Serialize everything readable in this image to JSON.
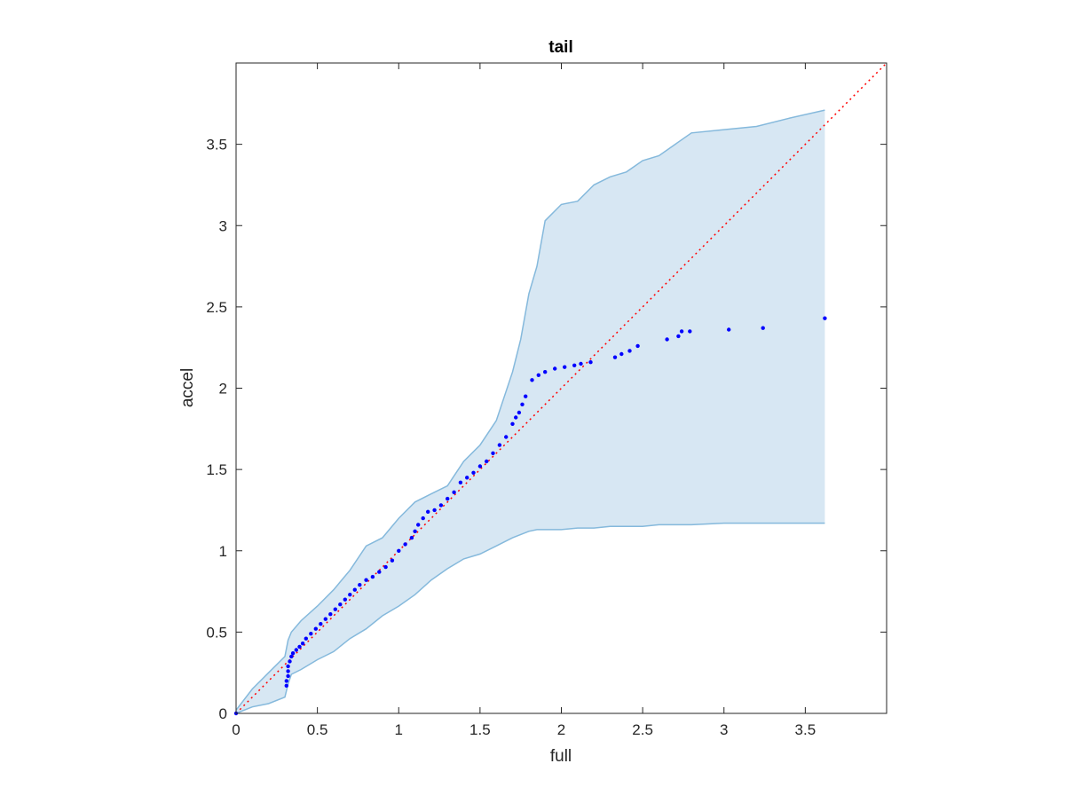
{
  "chart_data": {
    "type": "scatter",
    "title": "tail",
    "xlabel": "full",
    "ylabel": "accel",
    "xlim": [
      0,
      4
    ],
    "ylim": [
      0,
      4
    ],
    "xticks": [
      0,
      0.5,
      1,
      1.5,
      2,
      2.5,
      3,
      3.5
    ],
    "yticks": [
      0,
      0.5,
      1,
      1.5,
      2,
      2.5,
      3,
      3.5
    ],
    "xtick_labels": [
      "0",
      "0.5",
      "1",
      "1.5",
      "2",
      "2.5",
      "3",
      "3.5"
    ],
    "ytick_labels": [
      "0",
      "0.5",
      "1",
      "1.5",
      "2",
      "2.5",
      "3",
      "3.5"
    ],
    "grid": false,
    "reference_line": {
      "style": "dotted",
      "color": "#ff0000",
      "x": [
        0,
        4
      ],
      "y": [
        0,
        4
      ]
    },
    "band": {
      "fill_color": "#d7e7f3",
      "edge_color": "#85b9dc",
      "x": [
        0,
        0.1,
        0.2,
        0.3,
        0.32,
        0.34,
        0.4,
        0.5,
        0.6,
        0.7,
        0.8,
        0.9,
        1.0,
        1.1,
        1.2,
        1.3,
        1.4,
        1.5,
        1.6,
        1.7,
        1.75,
        1.8,
        1.85,
        1.9,
        2.0,
        2.1,
        2.2,
        2.3,
        2.4,
        2.5,
        2.6,
        2.7,
        2.8,
        3.0,
        3.2,
        3.4,
        3.62
      ],
      "upper": [
        0.02,
        0.15,
        0.25,
        0.35,
        0.45,
        0.5,
        0.57,
        0.66,
        0.76,
        0.88,
        1.03,
        1.08,
        1.2,
        1.3,
        1.35,
        1.4,
        1.55,
        1.65,
        1.8,
        2.1,
        2.3,
        2.58,
        2.75,
        3.03,
        3.13,
        3.15,
        3.25,
        3.3,
        3.33,
        3.4,
        3.43,
        3.5,
        3.57,
        3.59,
        3.61,
        3.66,
        3.71
      ],
      "lower": [
        0.0,
        0.04,
        0.06,
        0.1,
        0.18,
        0.24,
        0.27,
        0.33,
        0.38,
        0.46,
        0.52,
        0.6,
        0.66,
        0.73,
        0.82,
        0.89,
        0.95,
        0.98,
        1.03,
        1.08,
        1.1,
        1.12,
        1.13,
        1.13,
        1.13,
        1.14,
        1.14,
        1.15,
        1.15,
        1.15,
        1.16,
        1.16,
        1.16,
        1.17,
        1.17,
        1.17,
        1.17
      ]
    },
    "series": [
      {
        "color": "#0000ff",
        "x": [
          0.0,
          0.31,
          0.31,
          0.32,
          0.32,
          0.32,
          0.33,
          0.34,
          0.35,
          0.37,
          0.39,
          0.41,
          0.43,
          0.46,
          0.49,
          0.52,
          0.55,
          0.58,
          0.61,
          0.64,
          0.67,
          0.7,
          0.73,
          0.76,
          0.8,
          0.84,
          0.88,
          0.92,
          0.96,
          1.0,
          1.04,
          1.08,
          1.1,
          1.12,
          1.15,
          1.18,
          1.22,
          1.26,
          1.3,
          1.34,
          1.38,
          1.42,
          1.46,
          1.5,
          1.54,
          1.58,
          1.62,
          1.66,
          1.7,
          1.72,
          1.74,
          1.76,
          1.78,
          1.82,
          1.86,
          1.9,
          1.96,
          2.02,
          2.08,
          2.12,
          2.18,
          2.33,
          2.37,
          2.42,
          2.47,
          2.65,
          2.72,
          2.74,
          2.79,
          3.03,
          3.24,
          3.62
        ],
        "y": [
          0.0,
          0.17,
          0.2,
          0.23,
          0.26,
          0.29,
          0.32,
          0.35,
          0.37,
          0.39,
          0.41,
          0.43,
          0.46,
          0.49,
          0.52,
          0.55,
          0.58,
          0.61,
          0.64,
          0.67,
          0.7,
          0.73,
          0.76,
          0.79,
          0.82,
          0.84,
          0.87,
          0.9,
          0.94,
          1.0,
          1.04,
          1.08,
          1.12,
          1.16,
          1.2,
          1.24,
          1.25,
          1.28,
          1.32,
          1.36,
          1.42,
          1.45,
          1.48,
          1.52,
          1.55,
          1.6,
          1.65,
          1.7,
          1.78,
          1.82,
          1.85,
          1.9,
          1.95,
          2.05,
          2.08,
          2.1,
          2.12,
          2.13,
          2.14,
          2.15,
          2.16,
          2.19,
          2.21,
          2.23,
          2.26,
          2.3,
          2.32,
          2.35,
          2.35,
          2.36,
          2.37,
          2.43
        ]
      }
    ]
  }
}
